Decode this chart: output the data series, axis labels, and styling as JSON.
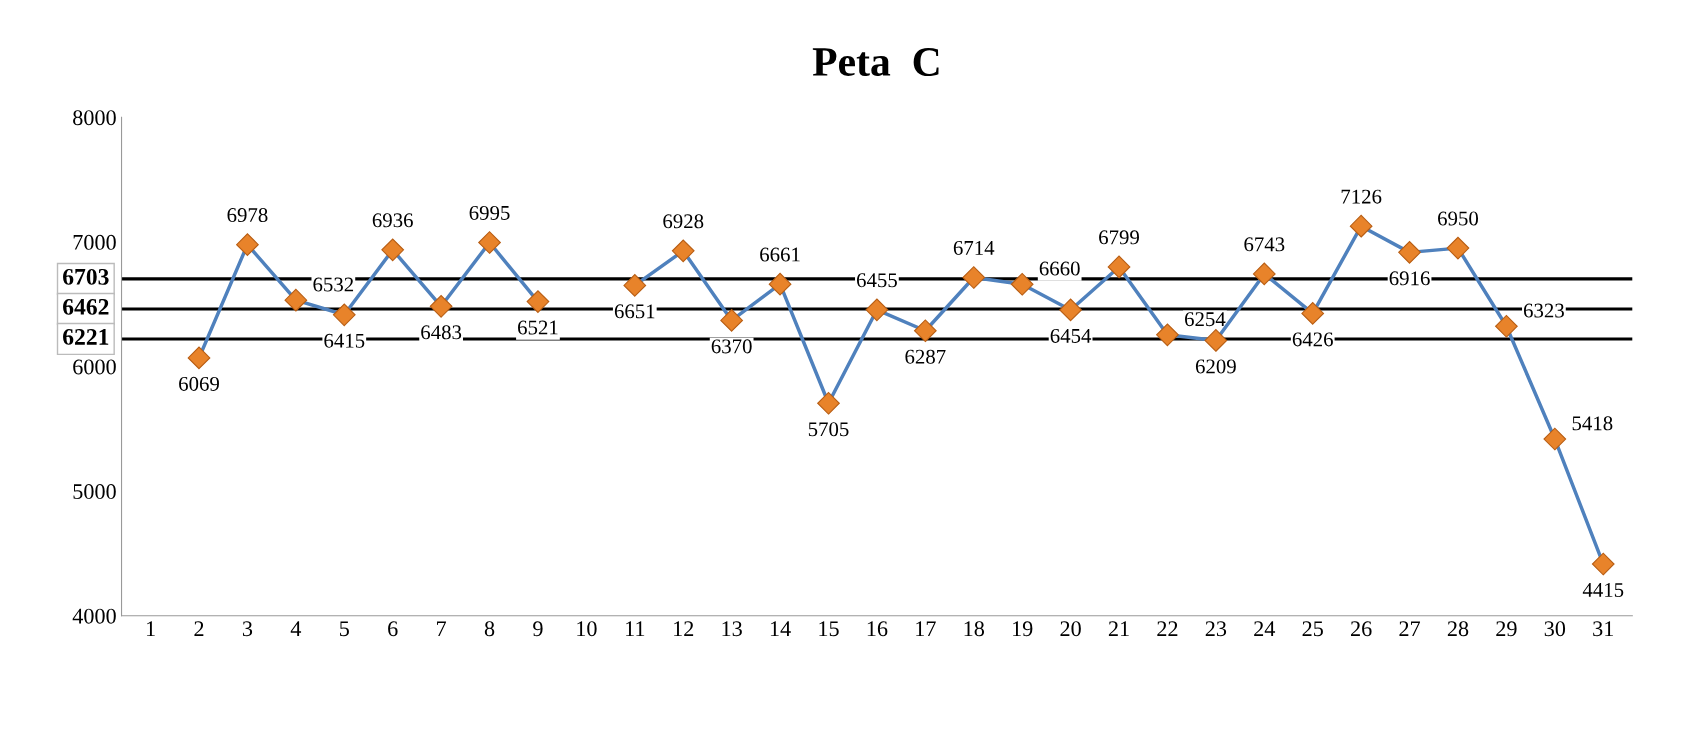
{
  "chart_data": {
    "type": "line",
    "title": "Peta  C",
    "categories": [
      "1",
      "2",
      "3",
      "4",
      "5",
      "6",
      "7",
      "8",
      "9",
      "10",
      "11",
      "12",
      "13",
      "14",
      "15",
      "16",
      "17",
      "18",
      "19",
      "20",
      "21",
      "22",
      "23",
      "24",
      "25",
      "26",
      "27",
      "28",
      "29",
      "30",
      "31"
    ],
    "series": [
      {
        "color": "#4f81bd",
        "colors": [
          "#e8832a",
          "#e8832a",
          "#e8832a",
          "#e8832a",
          "#e8832a",
          "#e8832a",
          "#e8832a",
          "#e8832a",
          "#e8832a",
          "#e8832a",
          "#e8832a",
          "#e8832a",
          "#e8832a",
          "#e8832a",
          "#e8832a",
          "#e8832a",
          "#e8832a",
          "#e8832a",
          "#e8832a",
          "#e8832a",
          "#e8832a",
          "#e8832a",
          "#e8832a",
          "#e8832a",
          "#e8832a",
          "#e8832a",
          "#e8832a",
          "#e8832a",
          "#e8832a",
          "#e8832a",
          "#e8832a"
        ],
        "values": [
          null,
          6069,
          6978,
          6532,
          6415,
          6936,
          6483,
          6995,
          6521,
          null,
          6651,
          6928,
          6370,
          6661,
          5705,
          6455,
          6287,
          6714,
          6660,
          6454,
          6799,
          6254,
          6209,
          6743,
          6426,
          7126,
          6916,
          6950,
          6323,
          5418,
          4415
        ]
      }
    ],
    "ylim": [
      4000,
      8000
    ],
    "yticks": [
      4000,
      5000,
      6000,
      7000,
      8000
    ],
    "ref_lines": [
      {
        "axis": "y",
        "value": 6703,
        "label": "6703",
        "color": "#000000"
      },
      {
        "axis": "y",
        "value": 6462,
        "label": "6462",
        "color": "#000000"
      },
      {
        "axis": "y",
        "value": 6221,
        "label": "6221",
        "color": "#000000"
      }
    ],
    "data_labels": true,
    "marker": "diamond",
    "line_style": "solid",
    "grid": false,
    "legend": false
  }
}
